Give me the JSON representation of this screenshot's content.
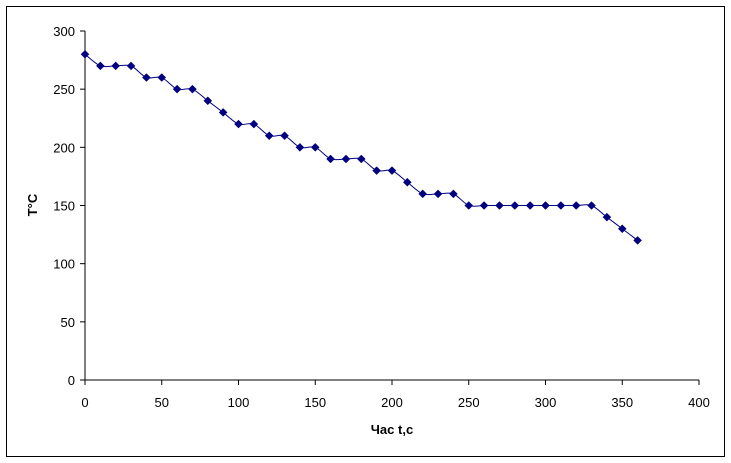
{
  "chart_data": {
    "type": "line",
    "title": "",
    "xlabel": "Час t,с",
    "ylabel": "T°C",
    "xlim": [
      0,
      400
    ],
    "ylim": [
      0,
      300
    ],
    "x_ticks": [
      0,
      50,
      100,
      150,
      200,
      250,
      300,
      350,
      400
    ],
    "y_ticks": [
      0,
      50,
      100,
      150,
      200,
      250,
      300
    ],
    "grid": false,
    "legend": "none",
    "series": [
      {
        "color": "#000080",
        "marker": "diamond",
        "x": [
          0,
          10,
          20,
          30,
          40,
          50,
          60,
          70,
          80,
          90,
          100,
          110,
          120,
          130,
          140,
          150,
          160,
          170,
          180,
          190,
          200,
          210,
          220,
          230,
          240,
          250,
          260,
          270,
          280,
          290,
          300,
          310,
          320,
          330,
          340,
          350,
          360
        ],
        "y": [
          280,
          270,
          270,
          270,
          260,
          260,
          250,
          250,
          240,
          230,
          220,
          220,
          210,
          210,
          200,
          200,
          190,
          190,
          190,
          180,
          180,
          170,
          160,
          160,
          160,
          150,
          150,
          150,
          150,
          150,
          150,
          150,
          150,
          150,
          140,
          130,
          120
        ]
      }
    ]
  }
}
